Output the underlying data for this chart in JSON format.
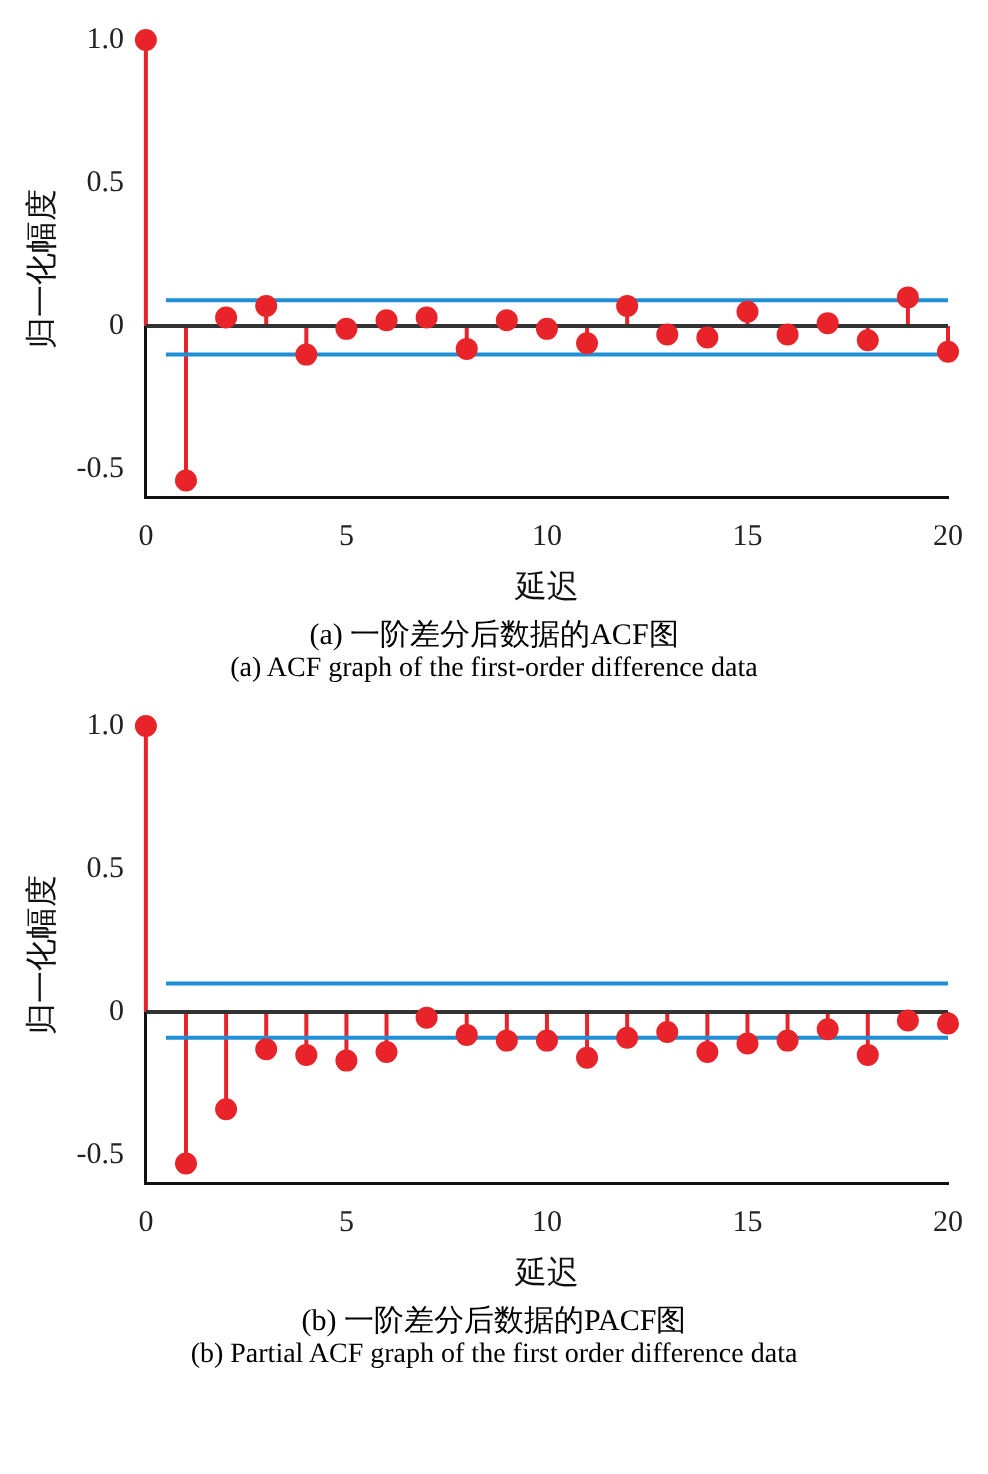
{
  "chart_data": [
    {
      "type": "lollipop",
      "title": "(a) 一阶差分后数据的ACF图",
      "subtitle": "(a) ACF graph of the first-order difference data",
      "xlabel": "延迟",
      "ylabel": "归一化幅度",
      "x": [
        0,
        1,
        2,
        3,
        4,
        5,
        6,
        7,
        8,
        9,
        10,
        11,
        12,
        13,
        14,
        15,
        16,
        17,
        18,
        19,
        20
      ],
      "values": [
        1.0,
        -0.54,
        0.03,
        0.07,
        -0.1,
        -0.01,
        0.02,
        0.03,
        -0.08,
        0.02,
        -0.01,
        -0.06,
        0.07,
        -0.03,
        -0.04,
        0.05,
        -0.03,
        0.01,
        -0.05,
        0.1,
        -0.09
      ],
      "color": "#e8242a",
      "marker": "circle",
      "xlim": [
        0,
        20
      ],
      "xticks": [
        0,
        5,
        10,
        15,
        20
      ],
      "ylim": [
        -0.6,
        1.0
      ],
      "yticks": [
        -0.5,
        0,
        0.5,
        {
          "value": 1.0,
          "label": "1.0"
        }
      ],
      "grid": false,
      "ref_lines": [
        {
          "axis": "y",
          "value": 0,
          "color": "#333333"
        },
        {
          "axis": "y",
          "value": 0.09,
          "color": "#1f8fd6"
        },
        {
          "axis": "y",
          "value": -0.1,
          "color": "#1f8fd6"
        }
      ]
    },
    {
      "type": "lollipop",
      "title": "(b) 一阶差分后数据的PACF图",
      "subtitle": "(b) Partial ACF graph of the first order difference data",
      "xlabel": "延迟",
      "ylabel": "归一化幅度",
      "x": [
        0,
        1,
        2,
        3,
        4,
        5,
        6,
        7,
        8,
        9,
        10,
        11,
        12,
        13,
        14,
        15,
        16,
        17,
        18,
        19,
        20
      ],
      "values": [
        1.0,
        -0.53,
        -0.34,
        -0.13,
        -0.15,
        -0.17,
        -0.14,
        -0.02,
        -0.08,
        -0.1,
        -0.1,
        -0.16,
        -0.09,
        -0.07,
        -0.14,
        -0.11,
        -0.1,
        -0.06,
        -0.15,
        -0.03,
        -0.04
      ],
      "color": "#e8242a",
      "marker": "circle",
      "xlim": [
        0,
        20
      ],
      "xticks": [
        0,
        5,
        10,
        15,
        20
      ],
      "ylim": [
        -0.6,
        1.0
      ],
      "yticks": [
        -0.5,
        0,
        0.5,
        {
          "value": 1.0,
          "label": "1.0"
        }
      ],
      "grid": false,
      "ref_lines": [
        {
          "axis": "y",
          "value": 0,
          "color": "#333333"
        },
        {
          "axis": "y",
          "value": 0.1,
          "color": "#1f8fd6"
        },
        {
          "axis": "y",
          "value": -0.09,
          "color": "#1f8fd6"
        }
      ]
    }
  ]
}
